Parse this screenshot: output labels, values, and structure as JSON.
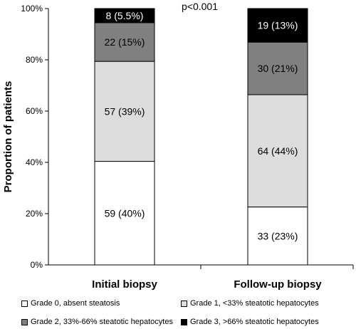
{
  "chart_data": {
    "type": "bar",
    "stacked": true,
    "categories": [
      "Initial biopsy",
      "Follow-up biopsy"
    ],
    "ylabel": "Proportion of patients",
    "xlabel": "",
    "ylim": [
      0,
      100
    ],
    "yticks": [
      "0%",
      "20%",
      "40%",
      "60%",
      "80%",
      "100%"
    ],
    "annotation": "p<0.001",
    "grid": false,
    "legend_position": "bottom",
    "series": [
      {
        "name": "Grade 0, absent steatosis",
        "color": "#ffffff",
        "label_color": "#000000",
        "values": [
          40.4,
          22.6
        ],
        "labels": [
          "59 (40%)",
          "33 (23%)"
        ]
      },
      {
        "name": "Grade 1, <33% steatotic hepatocytes",
        "color": "#dddddd",
        "label_color": "#000000",
        "values": [
          39.0,
          43.8
        ],
        "labels": [
          "57 (39%)",
          "64 (44%)"
        ]
      },
      {
        "name": "Grade 2, 33%-66% steatotic hepatocytes",
        "color": "#808080",
        "label_color": "#000000",
        "values": [
          15.1,
          20.5
        ],
        "labels": [
          "22 (15%)",
          "30 (21%)"
        ]
      },
      {
        "name": "Grade 3, >66% steatotic hepatocytes",
        "color": "#000000",
        "label_color": "#ffffff",
        "values": [
          5.5,
          13.1
        ],
        "labels": [
          "8 (5.5%)",
          "19 (13%)"
        ]
      }
    ]
  }
}
